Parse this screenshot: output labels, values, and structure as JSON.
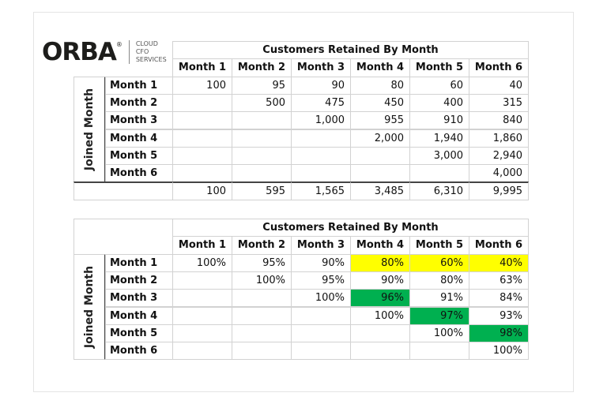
{
  "logo": {
    "name": "ORBA",
    "mark": "®",
    "tagline": [
      "CLOUD",
      "CFO",
      "SERVICES"
    ]
  },
  "tables": [
    {
      "title": "Customers Retained By Month",
      "columns": [
        "Month 1",
        "Month 2",
        "Month 3",
        "Month 4",
        "Month 5",
        "Month 6"
      ],
      "row_axis_label": "Joined Month",
      "rows": [
        [
          "Month 1",
          "100",
          "95",
          "90",
          "80",
          "60",
          "40"
        ],
        [
          "Month 2",
          null,
          "500",
          "475",
          "450",
          "400",
          "315"
        ],
        [
          "Month 3",
          null,
          null,
          "1,000",
          "955",
          "910",
          "840"
        ],
        [
          "Month 4",
          null,
          null,
          null,
          "2,000",
          "1,940",
          "1,860"
        ],
        [
          "Month 5",
          null,
          null,
          null,
          null,
          "3,000",
          "2,940"
        ],
        [
          "Month 6",
          null,
          null,
          null,
          null,
          null,
          "4,000"
        ]
      ],
      "totals": [
        "100",
        "595",
        "1,565",
        "3,485",
        "6,310",
        "9,995"
      ]
    },
    {
      "title": "Customers Retained By Month",
      "columns": [
        "Month 1",
        "Month 2",
        "Month 3",
        "Month 4",
        "Month 5",
        "Month 6"
      ],
      "row_axis_label": "Joined Month",
      "rows": [
        [
          "Month 1",
          "100%",
          "95%",
          "90%",
          "80%",
          "60%",
          "40%"
        ],
        [
          "Month 2",
          null,
          "100%",
          "95%",
          "90%",
          "80%",
          "63%"
        ],
        [
          "Month 3",
          null,
          null,
          "100%",
          "96%",
          "91%",
          "84%"
        ],
        [
          "Month 4",
          null,
          null,
          null,
          "100%",
          "97%",
          "93%"
        ],
        [
          "Month 5",
          null,
          null,
          null,
          null,
          "100%",
          "98%"
        ],
        [
          "Month 6",
          null,
          null,
          null,
          null,
          null,
          "100%"
        ]
      ]
    }
  ]
}
